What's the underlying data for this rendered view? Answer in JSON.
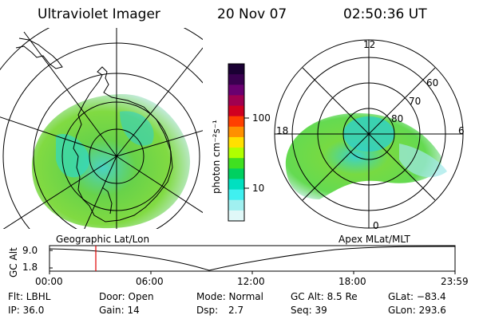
{
  "header": {
    "title": "Ultraviolet Imager",
    "date": "20 Nov 07",
    "time": "02:50:36 UT"
  },
  "left_panel": {
    "caption": "Geographic Lat/Lon"
  },
  "right_panel": {
    "caption": "Apex MLat/MLT",
    "mlt_labels": [
      "12",
      "18",
      "6",
      "0"
    ],
    "mlat_labels": [
      "60",
      "70",
      "80"
    ]
  },
  "colorbar": {
    "label": "photon cm⁻²s⁻¹",
    "ticks": [
      "100",
      "10"
    ],
    "scale": "log",
    "colors": [
      "#1a0033",
      "#3a0050",
      "#6a0070",
      "#a00050",
      "#d00020",
      "#ff4000",
      "#ff9000",
      "#ffe000",
      "#b0ff00",
      "#40e020",
      "#00d060",
      "#00e0c0",
      "#40f0f0",
      "#a0f0f0",
      "#e0f8f8"
    ]
  },
  "timeline": {
    "ylabel": "GC Alt",
    "yticks": [
      "9.0",
      "1.8"
    ],
    "xticks": [
      "00:00",
      "06:00",
      "12:00",
      "18:00",
      "23:59"
    ],
    "marker_time": "02:50"
  },
  "footer": {
    "flt": "Flt: LBHL",
    "ip": "IP: 36.0",
    "door": "Door: Open",
    "gain": "Gain: 14",
    "mode": "Mode: Normal",
    "dsp_label": "Dsp:",
    "dsp_value": "2.7",
    "gcalt": "GC Alt: 8.5 Re",
    "seq": "Seq: 39",
    "glat": "GLat: −83.4",
    "glon": "GLon: 293.6"
  }
}
